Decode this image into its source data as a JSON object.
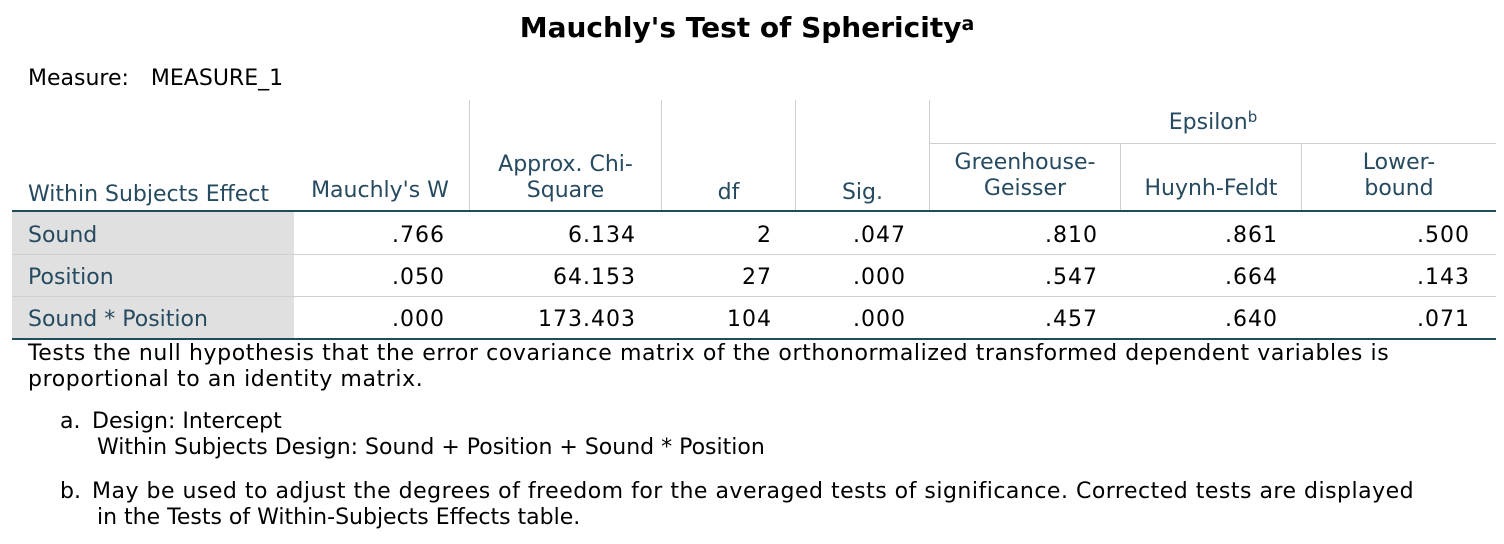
{
  "title": "Mauchly's Test of Sphericity",
  "title_footnote": "a",
  "measure": {
    "label": "Measure:",
    "value": "MEASURE_1"
  },
  "header": {
    "effect": "Within Subjects Effect",
    "mauchly_w": "Mauchly's W",
    "chi_square_line1": "Approx. Chi-",
    "chi_square_line2": "Square",
    "df": "df",
    "sig": "Sig.",
    "epsilon": "Epsilon",
    "epsilon_footnote": "b",
    "gg_line1": "Greenhouse-",
    "gg_line2": "Geisser",
    "hf": "Huynh-Feldt",
    "lb_line1": "Lower-",
    "lb_line2": "bound"
  },
  "rows": [
    {
      "effect": "Sound",
      "mauchly_w": ".766",
      "chi_square": "6.134",
      "df": "2",
      "sig": ".047",
      "gg": ".810",
      "hf": ".861",
      "lb": ".500"
    },
    {
      "effect": "Position",
      "mauchly_w": ".050",
      "chi_square": "64.153",
      "df": "27",
      "sig": ".000",
      "gg": ".547",
      "hf": ".664",
      "lb": ".143"
    },
    {
      "effect": "Sound * Position",
      "mauchly_w": ".000",
      "chi_square": "173.403",
      "df": "104",
      "sig": ".000",
      "gg": ".457",
      "hf": ".640",
      "lb": ".071"
    }
  ],
  "footnotes": {
    "main": "Tests the null hypothesis that the error covariance matrix of the orthonormalized transformed dependent variables is proportional to an identity matrix.",
    "a_letter": "a.",
    "a_line1": "Design: Intercept",
    "a_line2": "Within Subjects Design: Sound + Position + Sound * Position",
    "b_letter": "b.",
    "b_line1": "May be used to adjust the degrees of freedom for the averaged tests of significance. Corrected tests are displayed",
    "b_line2": "in the Tests of Within-Subjects Effects table."
  }
}
